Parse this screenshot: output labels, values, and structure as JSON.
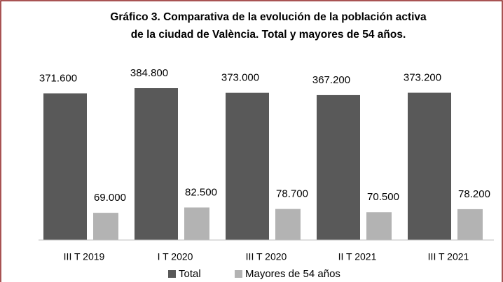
{
  "chart_data": {
    "type": "bar",
    "title": [
      "Gráfico 3. Comparativa de la evolución de la población activa",
      "de la ciudad de València. Total y mayores de 54 años."
    ],
    "categories": [
      "III T 2019",
      "I T 2020",
      "III T 2020",
      "II T 2021",
      "III T 2021"
    ],
    "series": [
      {
        "name": "Total",
        "color": "#595959",
        "values": [
          371600,
          384800,
          373000,
          367200,
          373200
        ],
        "value_labels": [
          "371.600",
          "384.800",
          "373.000",
          "367.200",
          "373.200"
        ]
      },
      {
        "name": "Mayores de 54 años",
        "color": "#b3b3b3",
        "values": [
          69000,
          82500,
          78700,
          70500,
          78200
        ],
        "value_labels": [
          "69.000",
          "82.500",
          "78.700",
          "70.500",
          "78.200"
        ]
      }
    ]
  }
}
